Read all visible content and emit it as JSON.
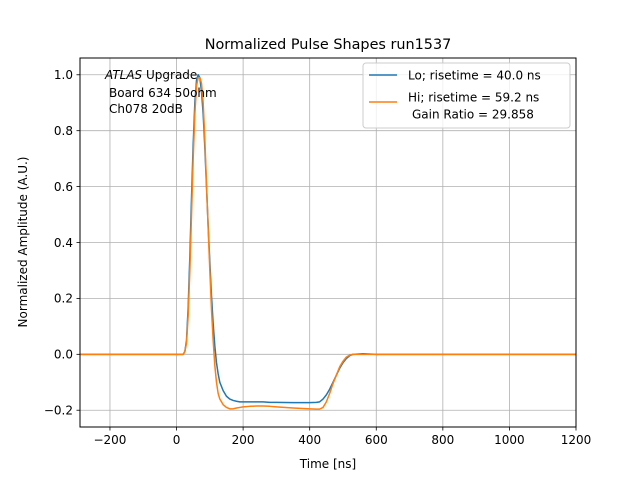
{
  "chart_data": {
    "type": "line",
    "title": "Normalized Pulse Shapes run1537",
    "xlabel": "Time [ns]",
    "ylabel": "Normalized Amplitude (A.U.)",
    "xlim": [
      -290,
      1200
    ],
    "ylim": [
      -0.26,
      1.06
    ],
    "xticks": [
      -200,
      0,
      200,
      400,
      600,
      800,
      1000,
      1200
    ],
    "xtick_labels": [
      "−200",
      "0",
      "200",
      "400",
      "600",
      "800",
      "1000",
      "1200"
    ],
    "yticks": [
      -0.2,
      0.0,
      0.2,
      0.4,
      0.6,
      0.8,
      1.0
    ],
    "ytick_labels": [
      "−0.2",
      "0.0",
      "0.2",
      "0.4",
      "0.6",
      "0.8",
      "1.0"
    ],
    "grid": true,
    "legend_position": "top-right",
    "annotation": {
      "italic": "ATLAS",
      "line1_rest": " Upgrade",
      "line2": "Board 634 50ohm",
      "line3": "Ch078 20dB"
    },
    "series": [
      {
        "name": "Lo; risetime = 40.0 ns",
        "color": "#1f77b4",
        "x": [
          -290,
          0,
          20,
          25,
          30,
          35,
          40,
          45,
          50,
          55,
          60,
          65,
          70,
          75,
          80,
          85,
          90,
          95,
          100,
          105,
          110,
          115,
          120,
          125,
          130,
          140,
          150,
          160,
          170,
          180,
          190,
          200,
          220,
          240,
          260,
          280,
          300,
          350,
          400,
          420,
          430,
          440,
          450,
          460,
          470,
          480,
          490,
          500,
          510,
          520,
          530,
          560,
          600,
          700,
          800,
          1000,
          1200
        ],
        "y": [
          0.0,
          0.0,
          0.0,
          0.01,
          0.05,
          0.17,
          0.35,
          0.56,
          0.75,
          0.9,
          0.98,
          1.0,
          0.99,
          0.94,
          0.86,
          0.74,
          0.6,
          0.46,
          0.33,
          0.21,
          0.11,
          0.03,
          -0.03,
          -0.07,
          -0.1,
          -0.13,
          -0.15,
          -0.16,
          -0.165,
          -0.168,
          -0.17,
          -0.17,
          -0.17,
          -0.17,
          -0.17,
          -0.172,
          -0.172,
          -0.173,
          -0.173,
          -0.172,
          -0.17,
          -0.16,
          -0.145,
          -0.125,
          -0.1,
          -0.075,
          -0.05,
          -0.03,
          -0.015,
          -0.005,
          0.0,
          0.002,
          0.0,
          0.0,
          0.0,
          0.0,
          0.0
        ]
      },
      {
        "name": "Hi; risetime = 59.2 ns",
        "name_line2": "Gain Ratio = 29.858",
        "color": "#ff7f0e",
        "x": [
          -290,
          0,
          20,
          25,
          30,
          35,
          40,
          45,
          50,
          55,
          60,
          65,
          70,
          75,
          80,
          85,
          90,
          95,
          100,
          105,
          110,
          115,
          120,
          125,
          130,
          140,
          150,
          160,
          170,
          180,
          190,
          200,
          220,
          240,
          260,
          280,
          300,
          350,
          400,
          420,
          430,
          440,
          450,
          460,
          470,
          480,
          490,
          500,
          510,
          520,
          530,
          560,
          600,
          700,
          800,
          1000,
          1200
        ],
        "y": [
          0.0,
          0.0,
          0.0,
          0.01,
          0.04,
          0.14,
          0.3,
          0.5,
          0.7,
          0.86,
          0.96,
          0.99,
          0.99,
          0.97,
          0.9,
          0.77,
          0.61,
          0.45,
          0.3,
          0.16,
          0.05,
          -0.04,
          -0.1,
          -0.14,
          -0.16,
          -0.18,
          -0.19,
          -0.195,
          -0.195,
          -0.192,
          -0.19,
          -0.188,
          -0.186,
          -0.185,
          -0.185,
          -0.186,
          -0.188,
          -0.192,
          -0.195,
          -0.196,
          -0.196,
          -0.19,
          -0.17,
          -0.14,
          -0.105,
          -0.075,
          -0.045,
          -0.025,
          -0.01,
          -0.003,
          0.0,
          0.0,
          0.0,
          0.0,
          0.0,
          0.0,
          0.0
        ]
      }
    ]
  }
}
